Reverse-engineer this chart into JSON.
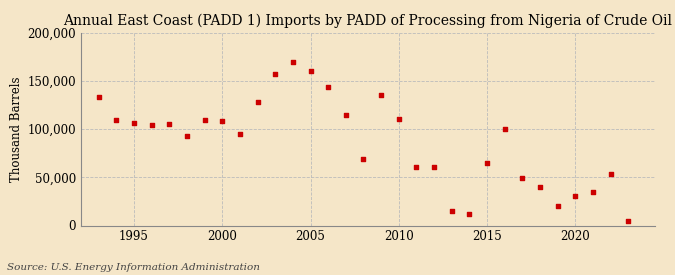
{
  "title": "Annual East Coast (PADD 1) Imports by PADD of Processing from Nigeria of Crude Oil",
  "ylabel": "Thousand Barrels",
  "source": "Source: U.S. Energy Information Administration",
  "background_color": "#f5e6c8",
  "marker_color": "#cc0000",
  "years": [
    1993,
    1994,
    1995,
    1996,
    1997,
    1998,
    1999,
    2000,
    2001,
    2002,
    2003,
    2004,
    2005,
    2006,
    2007,
    2008,
    2009,
    2010,
    2011,
    2012,
    2013,
    2014,
    2015,
    2016,
    2017,
    2018,
    2019,
    2020,
    2021,
    2022,
    2023
  ],
  "values": [
    133000,
    110000,
    107000,
    104000,
    105000,
    93000,
    110000,
    109000,
    95000,
    128000,
    157000,
    170000,
    161000,
    144000,
    115000,
    69000,
    136000,
    111000,
    61000,
    61000,
    15000,
    12000,
    65000,
    100000,
    49000,
    40000,
    20000,
    31000,
    35000,
    53000,
    5000
  ],
  "xlim": [
    1992,
    2024.5
  ],
  "ylim": [
    0,
    200000
  ],
  "yticks": [
    0,
    50000,
    100000,
    150000,
    200000
  ],
  "ytick_labels": [
    "0",
    "50,000",
    "100,000",
    "150,000",
    "200,000"
  ],
  "xticks": [
    1995,
    2000,
    2005,
    2010,
    2015,
    2020
  ],
  "title_fontsize": 10,
  "axis_fontsize": 8.5,
  "ylabel_fontsize": 8.5,
  "source_fontsize": 7.5,
  "marker_size": 12,
  "grid_color": "#bbbbbb",
  "spine_color": "#888888"
}
